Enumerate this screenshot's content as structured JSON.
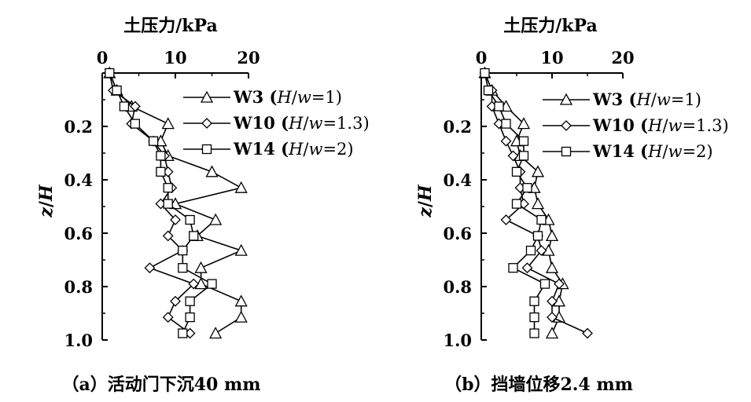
{
  "chart_data": [
    {
      "type": "line",
      "title": "土压力/kPa",
      "caption": "（a）活动门下沉40 mm",
      "xlabel": "土压力/kPa",
      "ylabel": "z/H",
      "xlim": [
        0,
        20
      ],
      "ylim": [
        0,
        1.0
      ],
      "x_ticks": [
        "0",
        "10",
        "20"
      ],
      "y_ticks": [
        "0.2",
        "0.4",
        "0.6",
        "0.8",
        "1.0"
      ],
      "x_axis_position": "top",
      "y_axis_inverted": true,
      "grid": false,
      "legend_placement": "top-right",
      "series": [
        {
          "name": "W3 (H/w=1)",
          "marker": "triangle",
          "points": [
            [
              1.0,
              0.0
            ],
            [
              2.0,
              0.065
            ],
            [
              4.0,
              0.125
            ],
            [
              9.0,
              0.19
            ],
            [
              8.0,
              0.255
            ],
            [
              9.0,
              0.31
            ],
            [
              15.0,
              0.37
            ],
            [
              19.0,
              0.43
            ],
            [
              10.0,
              0.49
            ],
            [
              15.5,
              0.55
            ],
            [
              13.0,
              0.61
            ],
            [
              19.0,
              0.665
            ],
            [
              13.5,
              0.73
            ],
            [
              13.5,
              0.79
            ],
            [
              19.0,
              0.855
            ],
            [
              19.0,
              0.915
            ],
            [
              15.5,
              0.975
            ]
          ]
        },
        {
          "name": "W10 (H/w=1.3)",
          "marker": "diamond",
          "points": [
            [
              1.0,
              0.0
            ],
            [
              1.5,
              0.065
            ],
            [
              4.5,
              0.125
            ],
            [
              4.0,
              0.19
            ],
            [
              7.0,
              0.255
            ],
            [
              8.5,
              0.31
            ],
            [
              9.0,
              0.37
            ],
            [
              9.5,
              0.43
            ],
            [
              8.0,
              0.49
            ],
            [
              10.0,
              0.55
            ],
            [
              9.0,
              0.61
            ],
            [
              11.0,
              0.665
            ],
            [
              6.5,
              0.73
            ],
            [
              12.5,
              0.79
            ],
            [
              10.0,
              0.855
            ],
            [
              9.0,
              0.915
            ],
            [
              12.0,
              0.975
            ]
          ]
        },
        {
          "name": "W14 (H/w=2)",
          "marker": "square",
          "points": [
            [
              1.0,
              0.0
            ],
            [
              2.0,
              0.065
            ],
            [
              3.0,
              0.125
            ],
            [
              4.5,
              0.19
            ],
            [
              7.0,
              0.255
            ],
            [
              8.0,
              0.31
            ],
            [
              8.0,
              0.37
            ],
            [
              9.0,
              0.43
            ],
            [
              9.0,
              0.49
            ],
            [
              12.0,
              0.55
            ],
            [
              12.5,
              0.61
            ],
            [
              11.0,
              0.665
            ],
            [
              11.0,
              0.73
            ],
            [
              15.0,
              0.79
            ],
            [
              12.0,
              0.855
            ],
            [
              12.0,
              0.915
            ],
            [
              11.0,
              0.975
            ]
          ]
        }
      ]
    },
    {
      "type": "line",
      "title": "土压力/kPa",
      "caption": "（b）挡墙位移2.4 mm",
      "xlabel": "土压力/kPa",
      "ylabel": "z/H",
      "xlim": [
        0,
        20
      ],
      "ylim": [
        0,
        1.0
      ],
      "x_ticks": [
        "0",
        "10",
        "20"
      ],
      "y_ticks": [
        "0.2",
        "0.4",
        "0.6",
        "0.8",
        "1.0"
      ],
      "x_axis_position": "top",
      "y_axis_inverted": true,
      "grid": false,
      "legend_placement": "top-right",
      "series": [
        {
          "name": "W3 (H/w=1)",
          "marker": "triangle",
          "points": [
            [
              0.5,
              0.0
            ],
            [
              1.5,
              0.065
            ],
            [
              3.5,
              0.125
            ],
            [
              6.0,
              0.19
            ],
            [
              5.0,
              0.255
            ],
            [
              5.5,
              0.31
            ],
            [
              8.0,
              0.37
            ],
            [
              7.5,
              0.43
            ],
            [
              8.0,
              0.49
            ],
            [
              9.5,
              0.55
            ],
            [
              10.0,
              0.61
            ],
            [
              9.5,
              0.665
            ],
            [
              10.0,
              0.73
            ],
            [
              11.5,
              0.79
            ],
            [
              11.0,
              0.855
            ],
            [
              11.0,
              0.915
            ],
            [
              10.0,
              0.975
            ]
          ]
        },
        {
          "name": "W10 (H/w=1.3)",
          "marker": "diamond",
          "points": [
            [
              0.5,
              0.0
            ],
            [
              1.5,
              0.065
            ],
            [
              1.5,
              0.125
            ],
            [
              2.5,
              0.19
            ],
            [
              3.5,
              0.255
            ],
            [
              4.5,
              0.31
            ],
            [
              5.5,
              0.37
            ],
            [
              5.5,
              0.43
            ],
            [
              6.0,
              0.49
            ],
            [
              3.5,
              0.55
            ],
            [
              8.0,
              0.61
            ],
            [
              8.5,
              0.665
            ],
            [
              6.5,
              0.73
            ],
            [
              11.0,
              0.79
            ],
            [
              10.0,
              0.855
            ],
            [
              10.0,
              0.915
            ],
            [
              15.0,
              0.975
            ]
          ]
        },
        {
          "name": "W14 (H/w=2)",
          "marker": "square",
          "points": [
            [
              0.5,
              0.0
            ],
            [
              1.0,
              0.065
            ],
            [
              2.5,
              0.125
            ],
            [
              3.5,
              0.19
            ],
            [
              6.0,
              0.255
            ],
            [
              6.0,
              0.31
            ],
            [
              5.0,
              0.37
            ],
            [
              6.5,
              0.43
            ],
            [
              5.0,
              0.49
            ],
            [
              8.5,
              0.55
            ],
            [
              8.0,
              0.61
            ],
            [
              7.0,
              0.665
            ],
            [
              4.5,
              0.73
            ],
            [
              9.0,
              0.79
            ],
            [
              7.5,
              0.855
            ],
            [
              7.5,
              0.915
            ],
            [
              7.5,
              0.975
            ]
          ]
        }
      ]
    }
  ]
}
